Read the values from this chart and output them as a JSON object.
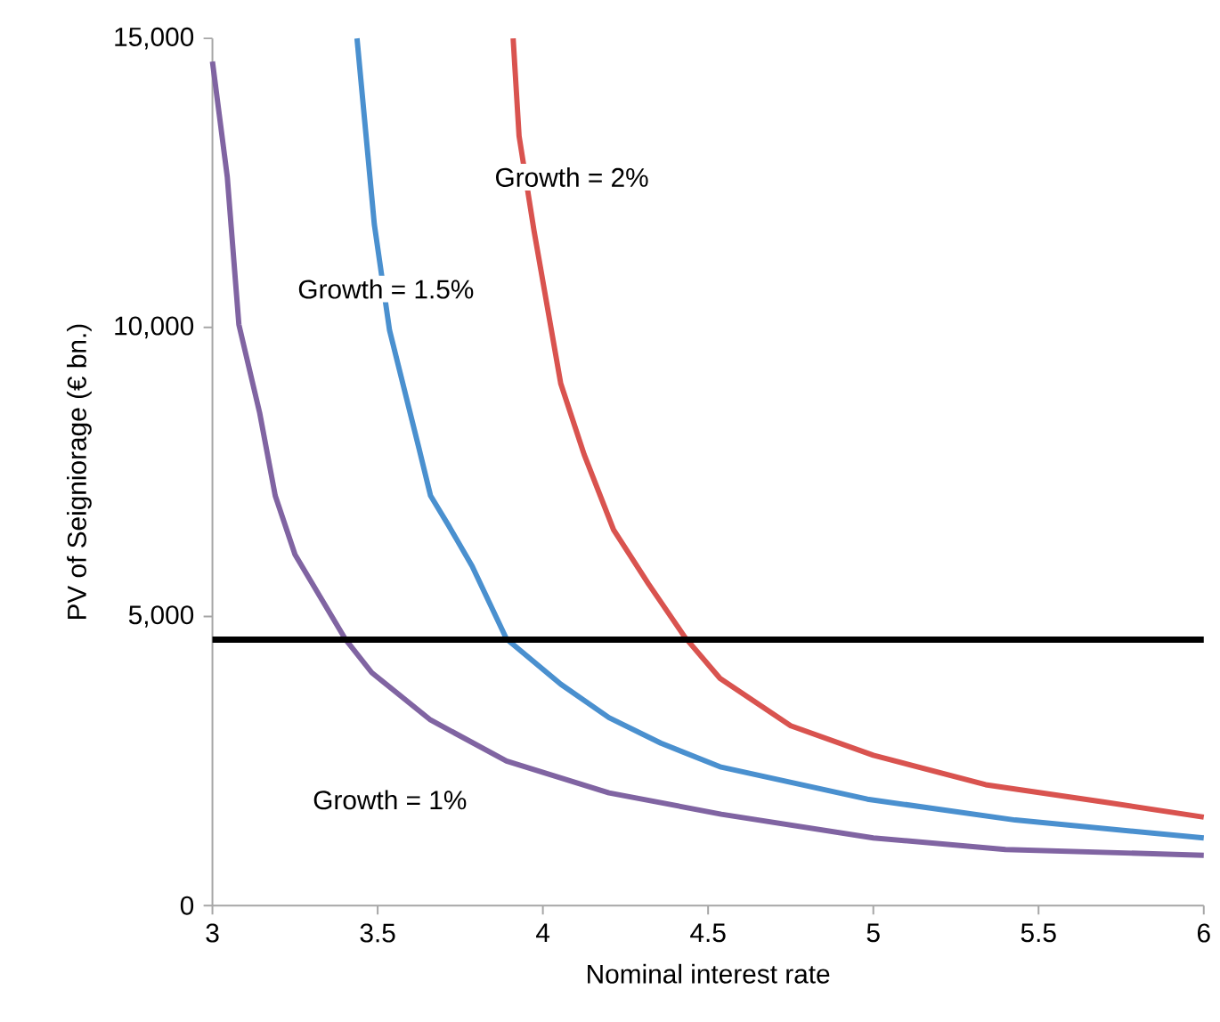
{
  "chart_data": {
    "type": "line",
    "xlabel": "Nominal interest rate",
    "ylabel": "PV of Seigniorage (€ bn.)",
    "xlim": [
      3,
      6
    ],
    "ylim": [
      0,
      15000
    ],
    "xticks": [
      3,
      3.5,
      4,
      4.5,
      5,
      5.5,
      6
    ],
    "yticks": [
      0,
      {
        "value": 5000,
        "label": "5,000"
      },
      {
        "value": 10000,
        "label": "10,000"
      },
      {
        "value": 15000,
        "label": "15,000"
      }
    ],
    "line_style": "solid",
    "series": [
      {
        "name": "Growth = 1%",
        "color": "#8064a2",
        "x": [
          3,
          3.045,
          3.08,
          3.143,
          3.19,
          3.25,
          3.402,
          3.482,
          3.66,
          3.89,
          4.2,
          4.54,
          5.0,
          5.4,
          6.0
        ],
        "values": [
          14600,
          12600,
          10050,
          8520,
          7090,
          6070,
          4610,
          4030,
          3210,
          2500,
          1950,
          1580,
          1170,
          970,
          870
        ]
      },
      {
        "name": "Growth = 1.5%",
        "color": "#4a90cf",
        "x": [
          3.4375,
          3.49,
          3.536,
          3.625,
          3.66,
          3.714,
          3.786,
          3.89,
          4.054,
          4.2,
          4.357,
          4.536,
          4.982,
          5.429,
          6.0
        ],
        "values": [
          15000,
          11780,
          9950,
          7910,
          7090,
          6580,
          5870,
          4610,
          3830,
          3250,
          2810,
          2400,
          1840,
          1480,
          1170
        ]
      },
      {
        "name": "Growth = 2%",
        "color": "#d9534f",
        "x": [
          3.91,
          3.928,
          3.973,
          4.054,
          4.125,
          4.214,
          4.32,
          4.43,
          4.536,
          4.75,
          5.0,
          5.34,
          5.7,
          6.0
        ],
        "values": [
          15000,
          13310,
          11680,
          9030,
          7800,
          6500,
          5560,
          4640,
          3930,
          3110,
          2600,
          2090,
          1790,
          1530
        ]
      }
    ],
    "ref_lines": [
      {
        "axis": "y",
        "value": 4600,
        "color": "#000000"
      }
    ]
  }
}
